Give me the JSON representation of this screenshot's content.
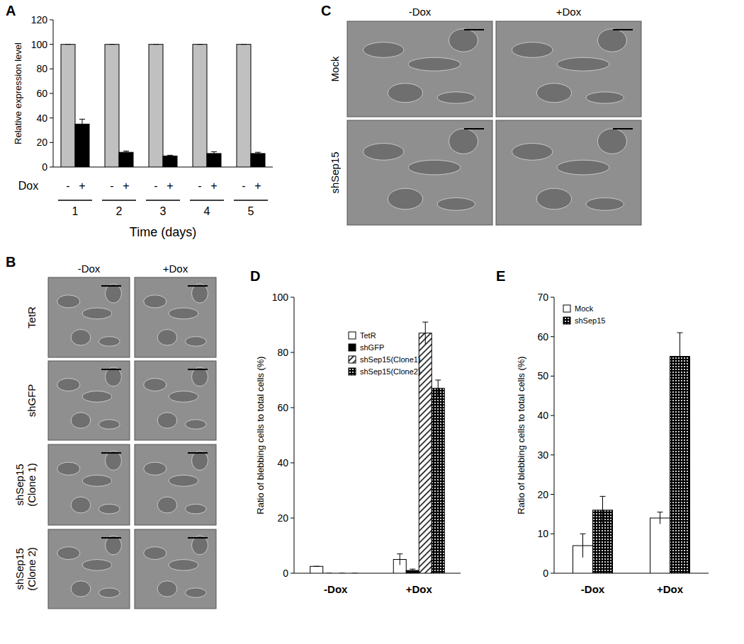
{
  "panel_labels": [
    "A",
    "B",
    "C",
    "D",
    "E"
  ],
  "chart_data": [
    {
      "type": "bar",
      "y_label": "Relative expression level",
      "x_label": "Time (days)",
      "annotation": "Dox",
      "categories": [
        "1",
        "2",
        "3",
        "4",
        "5"
      ],
      "series": [
        {
          "name": "-",
          "color": "#c0c0c0",
          "values": [
            100,
            100,
            100,
            100,
            100
          ],
          "errors": [
            0,
            0,
            0,
            0,
            0
          ]
        },
        {
          "name": "+",
          "color": "#000000",
          "values": [
            35,
            12,
            9,
            11,
            11
          ],
          "errors": [
            4,
            1,
            0.6,
            1.5,
            1
          ]
        }
      ],
      "ylim": [
        0,
        120
      ],
      "yticks": [
        0,
        20,
        40,
        60,
        80,
        100,
        120
      ],
      "grid": false
    },
    {
      "type": "bar",
      "y_label": "Ratio of blebbing cells to total cells (%)",
      "categories": [
        "-Dox",
        "+Dox"
      ],
      "series": [
        {
          "name": "TetR",
          "color": "#ffffff",
          "values": [
            2.5,
            5
          ],
          "errors": [
            0,
            2
          ]
        },
        {
          "name": "shGFP",
          "color": "#000000",
          "values": [
            0,
            1
          ],
          "errors": [
            0,
            0.5
          ]
        },
        {
          "name": "shSep15(Clone1)",
          "color": "#ffffff",
          "line_style": "hatch",
          "values": [
            0,
            87
          ],
          "errors": [
            0,
            4
          ]
        },
        {
          "name": "shSep15(Clone2)",
          "color": "#000000",
          "line_style": "dotted",
          "values": [
            0,
            67
          ],
          "errors": [
            0,
            3
          ]
        }
      ],
      "ylim": [
        0,
        100
      ],
      "yticks": [
        0,
        20,
        40,
        60,
        80,
        100
      ],
      "grid": false,
      "legend": "top"
    },
    {
      "type": "bar",
      "y_label": "Ratio of blebbing cells to total cells (%)",
      "categories": [
        "-Dox",
        "+Dox"
      ],
      "series": [
        {
          "name": "Mock",
          "color": "#ffffff",
          "values": [
            7,
            14
          ],
          "errors": [
            3,
            1.5
          ]
        },
        {
          "name": "shSep15",
          "color": "#000000",
          "line_style": "dotted",
          "values": [
            16,
            55
          ],
          "errors": [
            3.5,
            6
          ]
        }
      ],
      "ylim": [
        0,
        70
      ],
      "yticks": [
        0,
        10,
        20,
        30,
        40,
        50,
        60,
        70
      ],
      "grid": false,
      "legend": "top"
    }
  ],
  "image_panels": [
    {
      "columns": [
        "-Dox",
        "+Dox"
      ],
      "rows": [
        [
          "TetR"
        ],
        [
          "shGFP"
        ],
        [
          "shSep15",
          "(Clone 1)"
        ],
        [
          "shSep15",
          "(Clone 2)"
        ]
      ]
    },
    {
      "columns": [
        "-Dox",
        "+Dox"
      ],
      "rows": [
        [
          "Mock"
        ],
        [
          "shSep15"
        ]
      ]
    }
  ]
}
